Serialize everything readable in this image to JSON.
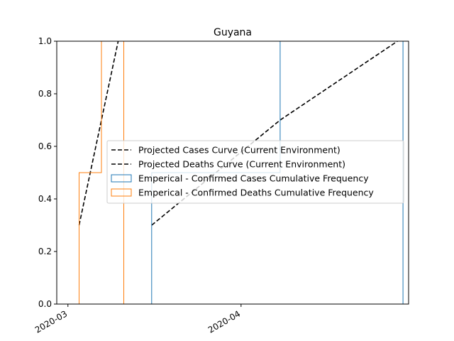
{
  "chart_data": {
    "type": "line",
    "title": "Guyana",
    "xlabel": "",
    "ylabel": "",
    "x_axis_type": "date",
    "xlim": [
      "2020-02-28",
      "2020-05-01"
    ],
    "ylim": [
      0,
      1
    ],
    "x_ticks": [
      {
        "value": "2020-03-01",
        "label": "2020-03"
      },
      {
        "value": "2020-04-01",
        "label": "2020-04"
      }
    ],
    "y_ticks": [
      {
        "value": 0.0,
        "label": "0.0"
      },
      {
        "value": 0.2,
        "label": "0.2"
      },
      {
        "value": 0.4,
        "label": "0.4"
      },
      {
        "value": 0.6,
        "label": "0.6"
      },
      {
        "value": 0.8,
        "label": "0.8"
      },
      {
        "value": 1.0,
        "label": "1.0"
      }
    ],
    "grid": false,
    "legend_position": "center-right",
    "series": [
      {
        "name": "Projected Cases Curve (Current Environment)",
        "kind": "line",
        "style": "dashed",
        "color": "#000000",
        "points": [
          {
            "x": "2020-03-16",
            "y": 0.3
          },
          {
            "x": "2020-04-08",
            "y": 0.7
          },
          {
            "x": "2020-04-29",
            "y": 1.0
          }
        ]
      },
      {
        "name": "Projected Deaths Curve (Current Environment)",
        "kind": "line",
        "style": "dashed",
        "color": "#000000",
        "points": [
          {
            "x": "2020-03-03",
            "y": 0.3
          },
          {
            "x": "2020-03-10",
            "y": 1.0
          }
        ]
      },
      {
        "name": "Emperical - Confirmed Cases Cumulative Frequency",
        "kind": "step",
        "color": "#1f77b4",
        "points": [
          {
            "x": "2020-03-16",
            "y": 0.0
          },
          {
            "x": "2020-03-16",
            "y": 0.5
          },
          {
            "x": "2020-04-08",
            "y": 0.5
          },
          {
            "x": "2020-04-08",
            "y": 1.0
          },
          {
            "x": "2020-04-30",
            "y": 1.0
          },
          {
            "x": "2020-04-30",
            "y": 0.0
          }
        ]
      },
      {
        "name": "Emperical - Confirmed Deaths Cumulative Frequency",
        "kind": "step",
        "color": "#ff7f0e",
        "points": [
          {
            "x": "2020-03-03",
            "y": 0.0
          },
          {
            "x": "2020-03-03",
            "y": 0.5
          },
          {
            "x": "2020-03-07",
            "y": 0.5
          },
          {
            "x": "2020-03-07",
            "y": 1.0
          },
          {
            "x": "2020-03-11",
            "y": 1.0
          },
          {
            "x": "2020-03-11",
            "y": 0.0
          }
        ]
      }
    ]
  }
}
